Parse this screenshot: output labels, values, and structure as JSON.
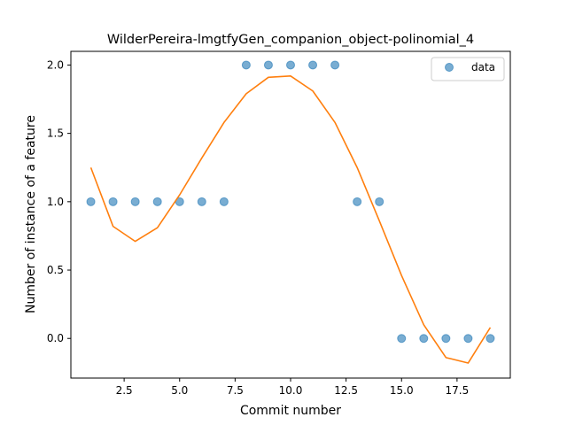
{
  "chart_data": {
    "type": "scatter",
    "title": "WilderPereira-lmgtfyGen_companion_object-polinomial_4",
    "xlabel": "Commit number",
    "ylabel": "Number of instance of a feature",
    "xlim": [
      0.1,
      19.9
    ],
    "ylim": [
      -0.29,
      2.1
    ],
    "xticks": [
      2.5,
      5.0,
      7.5,
      10.0,
      12.5,
      15.0,
      17.5
    ],
    "xtick_labels": [
      "2.5",
      "5.0",
      "7.5",
      "10.0",
      "12.5",
      "15.0",
      "17.5"
    ],
    "yticks": [
      0.0,
      0.5,
      1.0,
      1.5,
      2.0
    ],
    "ytick_labels": [
      "0.0",
      "0.5",
      "1.0",
      "1.5",
      "2.0"
    ],
    "grid": false,
    "legend_position": "upper right",
    "series": [
      {
        "name": "data",
        "kind": "scatter",
        "color": "#1f77b4",
        "x": [
          1,
          2,
          3,
          4,
          5,
          6,
          7,
          8,
          9,
          10,
          11,
          12,
          13,
          14,
          15,
          16,
          17,
          18,
          19
        ],
        "y": [
          1,
          1,
          1,
          1,
          1,
          1,
          1,
          2,
          2,
          2,
          2,
          2,
          1,
          1,
          0,
          0,
          0,
          0,
          0
        ]
      },
      {
        "kind": "line",
        "color": "#ff7f0e",
        "x": [
          1,
          2,
          3,
          4,
          5,
          6,
          7,
          8,
          9,
          10,
          11,
          12,
          13,
          14,
          15,
          16,
          17,
          18,
          19
        ],
        "y": [
          1.25,
          0.82,
          0.71,
          0.81,
          1.05,
          1.32,
          1.58,
          1.79,
          1.91,
          1.92,
          1.81,
          1.58,
          1.25,
          0.86,
          0.46,
          0.1,
          -0.14,
          -0.18,
          0.08
        ]
      }
    ]
  }
}
